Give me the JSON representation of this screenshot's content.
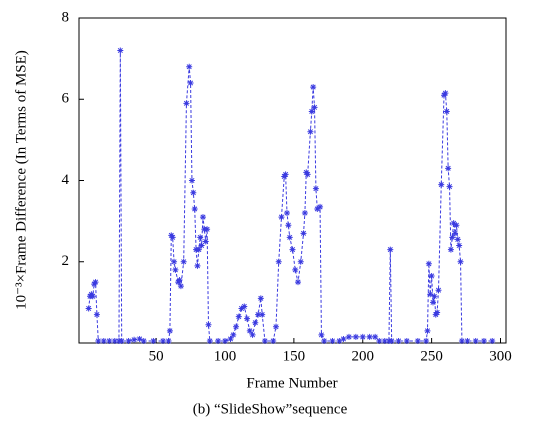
{
  "chart_data": {
    "type": "line",
    "y_label": "10⁻³×Frame Difference (In Terms of MSE)",
    "x_label": "Frame Number",
    "caption": "(b) “SlideShow”sequence",
    "x": [
      1,
      2,
      3,
      4,
      5,
      6,
      7,
      8,
      12,
      16,
      20,
      23,
      24,
      25,
      30,
      34,
      38,
      41,
      48,
      55,
      59,
      60,
      61,
      62,
      63,
      64,
      66,
      67,
      68,
      70,
      72,
      74,
      75,
      76,
      77,
      78,
      79,
      80,
      81,
      82,
      83,
      84,
      85,
      86,
      87,
      88,
      89,
      95,
      100,
      104,
      106,
      108,
      110,
      112,
      114,
      116,
      118,
      120,
      122,
      124,
      126,
      127,
      129,
      135,
      137,
      139,
      141,
      143,
      144,
      145,
      146,
      147,
      149,
      151,
      153,
      155,
      157,
      158,
      159,
      160,
      162,
      163,
      164,
      165,
      166,
      167,
      169,
      170,
      172,
      178,
      183,
      186,
      190,
      195,
      200,
      205,
      209,
      212,
      216,
      219,
      220,
      221,
      226,
      232,
      240,
      246,
      247,
      248,
      249,
      250,
      251,
      252,
      253,
      254,
      255,
      257,
      259,
      260,
      261,
      262,
      263,
      264,
      265,
      266,
      267,
      268,
      269,
      270,
      271,
      272,
      276,
      282,
      288,
      294
    ],
    "series": [
      {
        "color": "#3a3ae0",
        "values": [
          0.85,
          1.15,
          1.2,
          1.15,
          1.45,
          1.5,
          0.7,
          0.05,
          0.05,
          0.05,
          0.05,
          0.05,
          7.2,
          0.05,
          0.05,
          0.08,
          0.1,
          0.05,
          0.05,
          0.05,
          0.05,
          0.3,
          2.65,
          2.6,
          2.0,
          1.8,
          1.5,
          1.55,
          1.4,
          2.0,
          5.9,
          6.8,
          6.4,
          4.0,
          3.7,
          3.3,
          2.3,
          1.9,
          2.3,
          2.6,
          2.4,
          3.1,
          2.8,
          2.5,
          2.8,
          0.45,
          0.05,
          0.05,
          0.05,
          0.1,
          0.2,
          0.4,
          0.65,
          0.85,
          0.9,
          0.6,
          0.3,
          0.2,
          0.5,
          0.7,
          1.1,
          0.7,
          0.05,
          0.05,
          0.4,
          2.0,
          3.1,
          4.1,
          4.15,
          3.2,
          2.9,
          2.6,
          2.3,
          1.8,
          1.5,
          2.0,
          2.7,
          3.2,
          4.2,
          4.15,
          5.2,
          5.7,
          6.3,
          5.8,
          3.8,
          3.3,
          3.35,
          0.2,
          0.05,
          0.05,
          0.05,
          0.1,
          0.15,
          0.15,
          0.15,
          0.15,
          0.15,
          0.05,
          0.05,
          0.05,
          2.3,
          0.05,
          0.05,
          0.05,
          0.05,
          0.05,
          0.3,
          1.95,
          1.2,
          1.65,
          1.0,
          1.15,
          0.7,
          0.75,
          1.3,
          3.9,
          6.1,
          6.15,
          5.7,
          4.3,
          3.85,
          2.3,
          2.6,
          2.95,
          2.7,
          2.9,
          2.55,
          2.4,
          2.0,
          0.05,
          0.05,
          0.05,
          0.05,
          0.05
        ]
      }
    ],
    "xlim": [
      -6,
      304
    ],
    "ylim": [
      0,
      8
    ],
    "xticks": [
      50,
      100,
      150,
      200,
      250,
      300
    ],
    "yticks": [
      2,
      4,
      6,
      8
    ]
  }
}
